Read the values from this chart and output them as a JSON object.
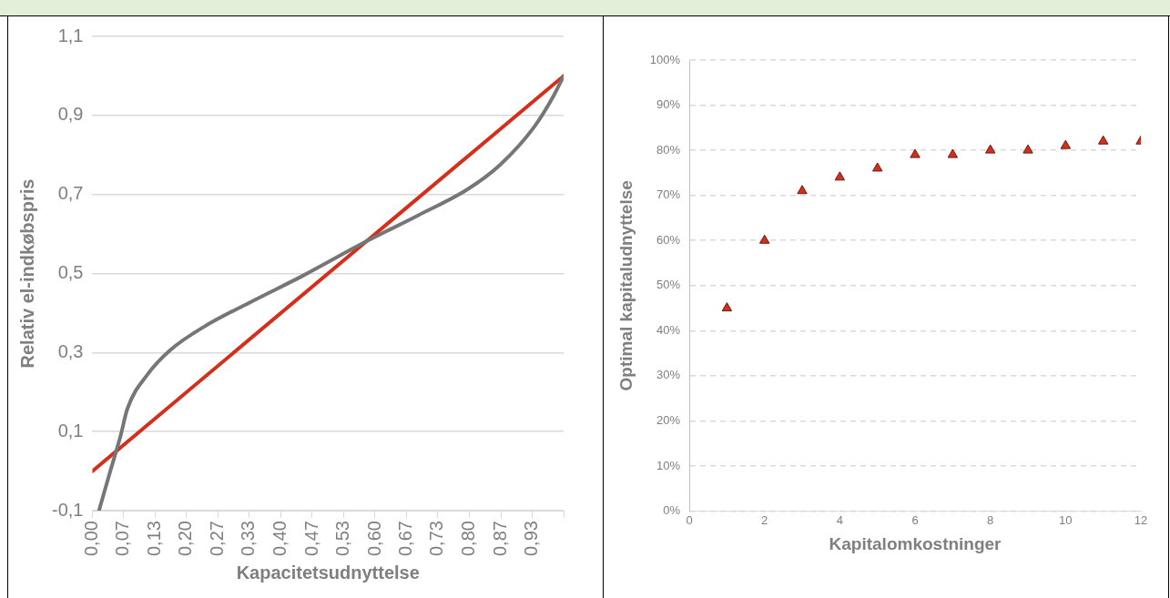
{
  "chart_data": [
    {
      "type": "line",
      "xlabel": "Kapacitetsudnyttelse",
      "ylabel": "Relativ el-indkøbspris",
      "series": [
        {
          "color": "#767676",
          "x": [
            0.014,
            0.038,
            0.06,
            0.074,
            0.116,
            0.165,
            0.235,
            0.341,
            0.446,
            0.579,
            0.691,
            0.796,
            0.866,
            0.937,
            0.978,
            1.0
          ],
          "values": [
            -0.1,
            0.0,
            0.09,
            0.157,
            0.243,
            0.306,
            0.364,
            0.431,
            0.494,
            0.58,
            0.647,
            0.713,
            0.776,
            0.87,
            0.948,
            1.0
          ]
        },
        {
          "color": "#d42f1b",
          "x": [
            0,
            1
          ],
          "values": [
            0,
            1
          ]
        }
      ],
      "xlim": [
        0,
        1
      ],
      "xticks": [
        {
          "value": 0,
          "label": "0,00"
        },
        {
          "value": 0.0667,
          "label": "0,07"
        },
        {
          "value": 0.1333,
          "label": "0,13"
        },
        {
          "value": 0.2,
          "label": "0,20"
        },
        {
          "value": 0.2667,
          "label": "0,27"
        },
        {
          "value": 0.3333,
          "label": "0,33"
        },
        {
          "value": 0.4,
          "label": "0,40"
        },
        {
          "value": 0.4667,
          "label": "0,47"
        },
        {
          "value": 0.5333,
          "label": "0,53"
        },
        {
          "value": 0.6,
          "label": "0,60"
        },
        {
          "value": 0.6667,
          "label": "0,67"
        },
        {
          "value": 0.7333,
          "label": "0,73"
        },
        {
          "value": 0.8,
          "label": "0,80"
        },
        {
          "value": 0.8667,
          "label": "0,87"
        },
        {
          "value": 0.9333,
          "label": "0,93"
        },
        {
          "value": 1,
          "label": null
        }
      ],
      "ylim": [
        -0.1,
        1.1
      ],
      "yticks": [
        {
          "value": -0.1,
          "label": "-0,1"
        },
        {
          "value": 0.1,
          "label": "0,1"
        },
        {
          "value": 0.3,
          "label": "0,3"
        },
        {
          "value": 0.5,
          "label": "0,5"
        },
        {
          "value": 0.7,
          "label": "0,7"
        },
        {
          "value": 0.9,
          "label": "0,9"
        },
        {
          "value": 1.1,
          "label": "1,1"
        }
      ],
      "grid": "y",
      "legend": false,
      "marker": "none",
      "line_style": "solid"
    },
    {
      "type": "scatter",
      "xlabel": "Kapitalomkostninger",
      "ylabel": "Optimal kapitaludnyttelse",
      "x": [
        1,
        2,
        3,
        4,
        5,
        6,
        7,
        8,
        9,
        10,
        11,
        12
      ],
      "series": [
        {
          "color": "#d42f1b",
          "values": [
            45,
            60,
            71,
            74,
            76,
            79,
            79,
            80,
            80,
            81,
            82,
            82
          ]
        }
      ],
      "xlim": [
        0,
        12
      ],
      "xticks": [
        0,
        2,
        4,
        6,
        8,
        10,
        12
      ],
      "ylim": [
        0,
        100
      ],
      "yticks": [
        {
          "value": 0,
          "label": "0%"
        },
        {
          "value": 10,
          "label": "10%"
        },
        {
          "value": 20,
          "label": "20%"
        },
        {
          "value": 30,
          "label": "30%"
        },
        {
          "value": 40,
          "label": "40%"
        },
        {
          "value": 50,
          "label": "50%"
        },
        {
          "value": 60,
          "label": "60%"
        },
        {
          "value": 70,
          "label": "70%"
        },
        {
          "value": 80,
          "label": "80%"
        },
        {
          "value": 90,
          "label": "90%"
        },
        {
          "value": 100,
          "label": "100%"
        }
      ],
      "grid": "y",
      "legend": false,
      "marker": "triangle"
    }
  ]
}
